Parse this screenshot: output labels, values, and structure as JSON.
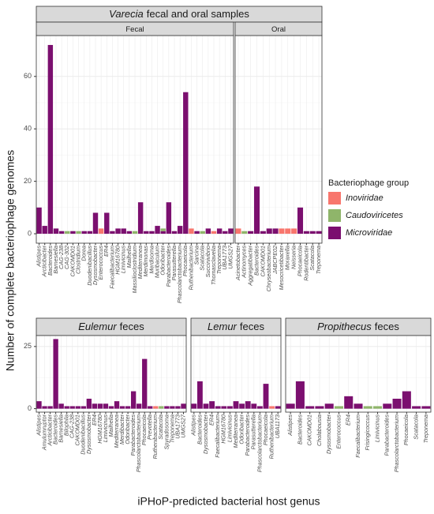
{
  "y_label": "Number of complete bacteriophage genomes",
  "x_label": "iPHoP-predicted bacterial host genus",
  "legend_title": "Bacteriophage group",
  "strips": [
    {
      "italic": "Varecia",
      "text": "fecal and oral samples"
    },
    {
      "italic": "Eulemur",
      "text": "feces"
    },
    {
      "italic": "Lemur",
      "text": "feces"
    },
    {
      "italic": "Propithecus",
      "text": "feces"
    }
  ],
  "chart_data": [
    {
      "type": "bar",
      "stacked": true,
      "facet": "Fecal",
      "grid": true,
      "categories": [
        "Alistipes",
        "Arcticibacter",
        "Bacteroides",
        "Barnesiella",
        "CAG-238",
        "CAG-302",
        "CAKOMD01",
        "Clostridium",
        "Dorea",
        "Duodenibacillus",
        "Dysosmobacter",
        "Enterococcus",
        "ER4",
        "Faecalibacterium",
        "HGM16780",
        "Limivicinus",
        "Mailhella",
        "Massilioclostridium",
        "Mediterranea",
        "Merdimonas",
        "Merdisoma",
        "Muribaculum",
        "Odoribacter",
        "Parabacteroides",
        "Parasutterella",
        "Phascolarctobacterium",
        "Phocaeicola",
        "Ruthenibacterium",
        "Sarcina",
        "Scatacola",
        "Succinivibrio",
        "Thomasclavelia",
        "Treponema",
        "UBA1773",
        "UMGS27"
      ],
      "series": [
        {
          "name": "Microviridae",
          "color": "#7b0f6f",
          "values": [
            10,
            3,
            72,
            2,
            1,
            0,
            1,
            0,
            1,
            1,
            8,
            0,
            8,
            1,
            2,
            2,
            1,
            0,
            12,
            1,
            1,
            3,
            1,
            12,
            1,
            3,
            54,
            0,
            1,
            0,
            2,
            0,
            2,
            1,
            2
          ]
        },
        {
          "name": "Caudoviricetes",
          "color": "#8fb56a",
          "values": [
            0,
            0,
            0,
            0,
            0,
            1,
            0,
            1,
            0,
            0,
            0,
            0,
            0,
            0,
            0,
            0,
            0,
            1,
            0,
            0,
            0,
            0,
            1,
            0,
            0,
            0,
            0,
            0,
            0,
            1,
            0,
            0,
            0,
            0,
            0
          ]
        },
        {
          "name": "Inoviridae",
          "color": "#f8766d",
          "values": [
            0,
            0,
            0,
            0,
            0,
            0,
            0,
            0,
            0,
            0,
            0,
            2,
            0,
            0,
            0,
            0,
            0,
            0,
            0,
            0,
            0,
            0,
            0,
            0,
            0,
            0,
            0,
            2,
            0,
            0,
            0,
            1,
            0,
            0,
            0
          ]
        }
      ],
      "ylim": [
        -3.6,
        75.6
      ],
      "yticks": [
        0,
        20,
        40,
        60
      ]
    },
    {
      "type": "bar",
      "stacked": true,
      "facet": "Oral",
      "grid": true,
      "categories": [
        "Acinetobacter",
        "Actinomyces",
        "Aggregatibacter",
        "Bacteroides",
        "CAKOMD01",
        "Chryseobacterium",
        "JABCPE02",
        "Mesocricetibacter",
        "Moraxella",
        "Neisseria",
        "Phocaeicola",
        "Rodentibacter",
        "Scatacola",
        "Treponema"
      ],
      "series": [
        {
          "name": "Microviridae",
          "color": "#7b0f6f",
          "values": [
            0,
            0,
            1,
            18,
            1,
            2,
            2,
            0,
            0,
            0,
            10,
            1,
            1,
            1
          ]
        },
        {
          "name": "Caudoviricetes",
          "color": "#8fb56a",
          "values": [
            0,
            1,
            0,
            0,
            0,
            0,
            0,
            0,
            0,
            0,
            0,
            0,
            0,
            0
          ]
        },
        {
          "name": "Inoviridae",
          "color": "#f8766d",
          "values": [
            2,
            0,
            0,
            0,
            0,
            0,
            0,
            2,
            2,
            2,
            0,
            0,
            0,
            0
          ]
        }
      ],
      "ylim": [
        -3.6,
        75.6
      ]
    },
    {
      "type": "bar",
      "stacked": true,
      "grid": true,
      "categories": [
        "Alistipes",
        "Amulumruptor",
        "Arcticibacter",
        "Bacteroides",
        "Barnesiella",
        "Bilophila",
        "CAG-238",
        "CAKOMD01",
        "Duodenibacillus",
        "Dysosmobacter",
        "ER4",
        "HGM16780",
        "Limivicinus",
        "Mailhella",
        "Mediterranea",
        "Merdibacter",
        "Odoribacter",
        "Parabacteroides",
        "Phascolarctobacterium",
        "Phocaeicola",
        "Prevotella",
        "Ruthenibacterium",
        "Scatacola",
        "Spyradosoma",
        "Treponema",
        "UBA1773",
        "UMGS27"
      ],
      "series": [
        {
          "name": "Microviridae",
          "color": "#7b0f6f",
          "values": [
            3,
            1,
            1,
            28,
            2,
            1,
            1,
            1,
            1,
            4,
            2,
            2,
            2,
            1,
            3,
            1,
            1,
            7,
            2,
            20,
            1,
            0,
            0,
            1,
            1,
            1,
            2
          ]
        },
        {
          "name": "Caudoviricetes",
          "color": "#8fb56a",
          "values": [
            0,
            0,
            0,
            0,
            0,
            0,
            0,
            0,
            0,
            0,
            0,
            0,
            0,
            0,
            0,
            0,
            0,
            0,
            0,
            0,
            0,
            0,
            1,
            0,
            0,
            0,
            0
          ]
        },
        {
          "name": "Inoviridae",
          "color": "#f8766d",
          "values": [
            0,
            0,
            0,
            0,
            0,
            0,
            0,
            0,
            0,
            0,
            0,
            0,
            0,
            0,
            0,
            0,
            0,
            0,
            0,
            0,
            0,
            1,
            0,
            0,
            0,
            0,
            0
          ]
        }
      ],
      "ylim": [
        -1.4,
        29.4
      ],
      "yticks": [
        0,
        25
      ]
    },
    {
      "type": "bar",
      "stacked": true,
      "grid": true,
      "categories": [
        "Alistipes",
        "Bacteroides",
        "Dysosmobacter",
        "ER4",
        "Faecalibacterium",
        "HGM16780",
        "Limivicinus",
        "Mediterranea",
        "Odoribacter",
        "Parabacteroides",
        "Parasutterella",
        "Phascolarctobacterium",
        "Phocaeicola",
        "Ruthenibacterium",
        "UBA1173"
      ],
      "series": [
        {
          "name": "Microviridae",
          "color": "#7b0f6f",
          "values": [
            2,
            11,
            2,
            3,
            1,
            1,
            1,
            3,
            2,
            3,
            2,
            1,
            10,
            0,
            1
          ]
        },
        {
          "name": "Caudoviricetes",
          "color": "#8fb56a",
          "values": [
            0,
            0,
            0,
            0,
            0,
            0,
            0,
            0,
            0,
            0,
            0,
            0,
            0,
            0,
            0
          ]
        },
        {
          "name": "Inoviridae",
          "color": "#f8766d",
          "values": [
            0,
            0,
            0,
            0,
            0,
            0,
            0,
            0,
            0,
            0,
            0,
            0,
            0,
            1,
            0
          ]
        }
      ],
      "ylim": [
        -1.4,
        29.4
      ]
    },
    {
      "type": "bar",
      "stacked": true,
      "grid": true,
      "categories": [
        "Alistipes",
        "Bacteroides",
        "CAKOMD01",
        "Cholabousia",
        "Dysosmobacter",
        "Enterococcus",
        "ER4",
        "Faecalibacterium",
        "Frisingicoccus",
        "Limivicinus",
        "Parabacteroides",
        "Phascolarctobacterium",
        "Phocaeicola",
        "Scatacola",
        "Treponema"
      ],
      "series": [
        {
          "name": "Microviridae",
          "color": "#7b0f6f",
          "values": [
            2,
            11,
            1,
            1,
            2,
            0,
            5,
            2,
            0,
            0,
            2,
            4,
            7,
            1,
            1
          ]
        },
        {
          "name": "Caudoviricetes",
          "color": "#8fb56a",
          "values": [
            0,
            0,
            0,
            0,
            0,
            1,
            0,
            0,
            1,
            1,
            0,
            0,
            0,
            0,
            0
          ]
        },
        {
          "name": "Inoviridae",
          "color": "#f8766d",
          "values": [
            0,
            0,
            0,
            0,
            0,
            0,
            0,
            0,
            0,
            0,
            0,
            0,
            0,
            0,
            0
          ]
        }
      ],
      "ylim": [
        -1.4,
        29.4
      ]
    }
  ]
}
